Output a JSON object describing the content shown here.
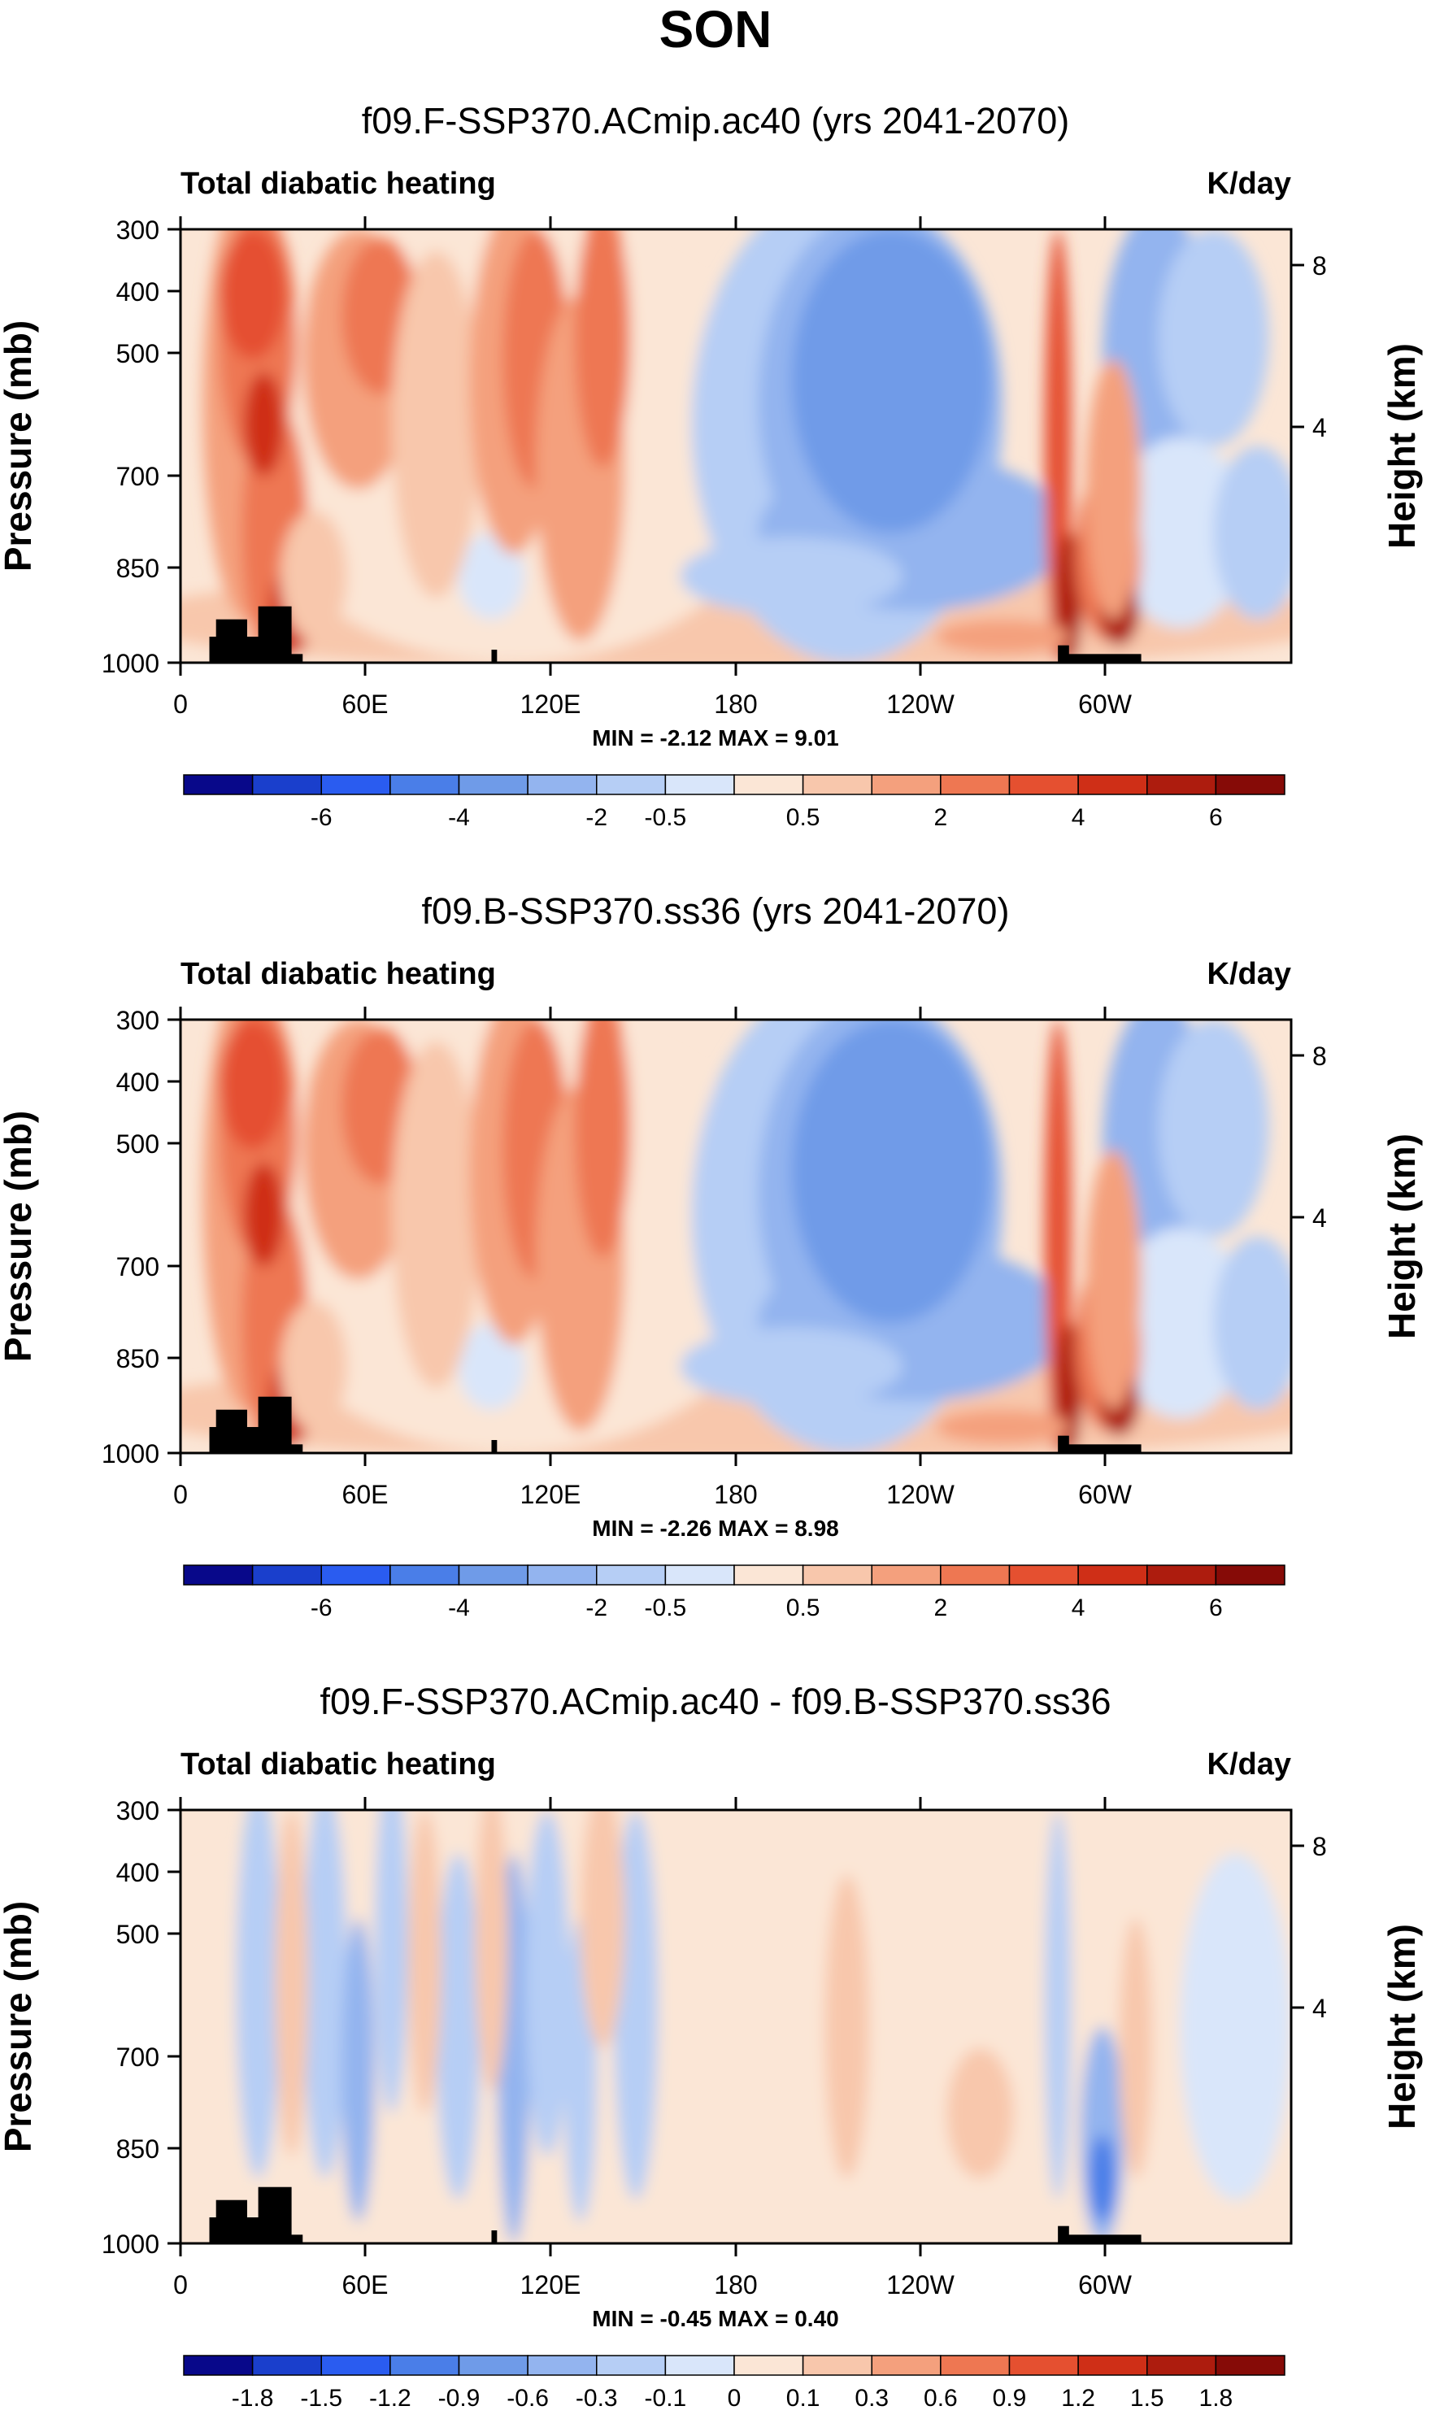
{
  "main_title": "SON",
  "chart_data": [
    {
      "type": "heatmap",
      "title": "f09.F-SSP370.ACmip.ac40 (yrs 2041-2070)",
      "left_label": "Total diabatic heating",
      "right_label": "K/day",
      "ylabel": "Pressure (mb)",
      "ylabel_right": "Height (km)",
      "xlabel": "",
      "x_ticks": [
        "0",
        "60E",
        "120E",
        "180",
        "120W",
        "60W"
      ],
      "y_ticks": [
        "300",
        "400",
        "500",
        "700",
        "850",
        "1000"
      ],
      "y_ticks_right": [
        "8",
        "4"
      ],
      "stats": "MIN = -2.12 MAX = 9.01",
      "min": -2.12,
      "max": 9.01,
      "colorbar": {
        "labels": [
          "-6",
          "-4",
          "-2",
          "-0.5",
          "0.5",
          "2",
          "4",
          "6"
        ],
        "colors": [
          "#08088a",
          "#1a3fcc",
          "#2a5cf0",
          "#4a7ee8",
          "#6f9be8",
          "#93b4ef",
          "#b6cef5",
          "#d9e6fa",
          "#fbe6d6",
          "#f8c7ac",
          "#f4a07d",
          "#ee7752",
          "#e55030",
          "#cf2f17",
          "#ad1c0e",
          "#860b07"
        ]
      },
      "description": "Zonal band of diabatic heating; strong heating (up to ~9 K/day) near 0-40E, 50-70E, 110-150E and 70W-60W; cooling (~-2 K/day) over 180-90W."
    },
    {
      "type": "heatmap",
      "title": "f09.B-SSP370.ss36 (yrs 2041-2070)",
      "left_label": "Total diabatic heating",
      "right_label": "K/day",
      "ylabel": "Pressure (mb)",
      "ylabel_right": "Height (km)",
      "xlabel": "",
      "x_ticks": [
        "0",
        "60E",
        "120E",
        "180",
        "120W",
        "60W"
      ],
      "y_ticks": [
        "300",
        "400",
        "500",
        "700",
        "850",
        "1000"
      ],
      "y_ticks_right": [
        "8",
        "4"
      ],
      "stats": "MIN = -2.26 MAX = 8.98",
      "min": -2.26,
      "max": 8.98,
      "colorbar": {
        "labels": [
          "-6",
          "-4",
          "-2",
          "-0.5",
          "0.5",
          "2",
          "4",
          "6"
        ],
        "colors": [
          "#08088a",
          "#1a3fcc",
          "#2a5cf0",
          "#4a7ee8",
          "#6f9be8",
          "#93b4ef",
          "#b6cef5",
          "#d9e6fa",
          "#fbe6d6",
          "#f8c7ac",
          "#f4a07d",
          "#ee7752",
          "#e55030",
          "#cf2f17",
          "#ad1c0e",
          "#860b07"
        ]
      }
    },
    {
      "type": "heatmap",
      "title": "f09.F-SSP370.ACmip.ac40 - f09.B-SSP370.ss36",
      "left_label": "Total diabatic heating",
      "right_label": "K/day",
      "ylabel": "Pressure (mb)",
      "ylabel_right": "Height (km)",
      "xlabel": "",
      "x_ticks": [
        "0",
        "60E",
        "120E",
        "180",
        "120W",
        "60W"
      ],
      "y_ticks": [
        "300",
        "400",
        "500",
        "700",
        "850",
        "1000"
      ],
      "y_ticks_right": [
        "8",
        "4"
      ],
      "stats": "MIN = -0.45 MAX = 0.40",
      "min": -0.45,
      "max": 0.4,
      "colorbar": {
        "labels": [
          "-1.8",
          "-1.5",
          "-1.2",
          "-0.9",
          "-0.6",
          "-0.3",
          "-0.1",
          "0",
          "0.1",
          "0.3",
          "0.6",
          "0.9",
          "1.2",
          "1.5",
          "1.8"
        ],
        "colors": [
          "#08088a",
          "#1a3fcc",
          "#2a5cf0",
          "#4a7ee8",
          "#6f9be8",
          "#93b4ef",
          "#b6cef5",
          "#d9e6fa",
          "#fbe6d6",
          "#f8c7ac",
          "#f4a07d",
          "#ee7752",
          "#e55030",
          "#cf2f17",
          "#ad1c0e",
          "#860b07"
        ]
      }
    }
  ]
}
